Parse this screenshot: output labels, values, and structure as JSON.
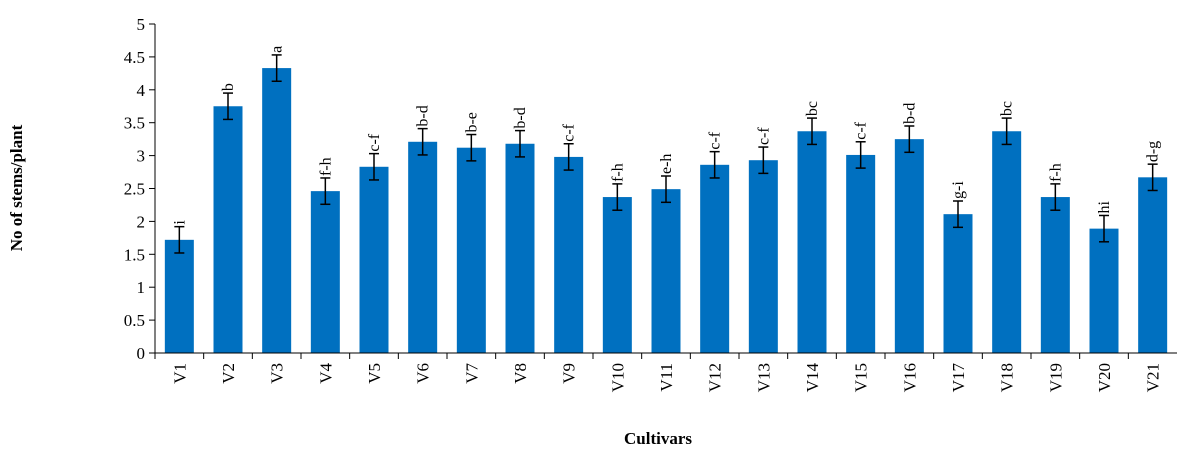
{
  "chart_data": {
    "type": "bar",
    "xlabel": "Cultivars",
    "ylabel": "No of stems/plant",
    "ylim": [
      0,
      5
    ],
    "yticks": [
      "0",
      "0.5",
      "1",
      "1.5",
      "2",
      "2.5",
      "3",
      "3.5",
      "4",
      "4.5",
      "5"
    ],
    "grid": false,
    "bar_color": "#0070c0",
    "categories": [
      "V1",
      "V2",
      "V3",
      "V4",
      "V5",
      "V6",
      "V7",
      "V8",
      "V9",
      "V10",
      "V11",
      "V12",
      "V13",
      "V14",
      "V15",
      "V16",
      "V17",
      "V18",
      "V19",
      "V20",
      "V21"
    ],
    "values": [
      1.72,
      3.75,
      4.33,
      2.46,
      2.83,
      3.21,
      3.12,
      3.18,
      2.98,
      2.37,
      2.49,
      2.86,
      2.93,
      3.37,
      3.01,
      3.25,
      2.11,
      3.37,
      2.37,
      1.89,
      2.67
    ],
    "errors": [
      0.2,
      0.2,
      0.2,
      0.2,
      0.2,
      0.2,
      0.2,
      0.2,
      0.2,
      0.2,
      0.2,
      0.2,
      0.2,
      0.2,
      0.2,
      0.2,
      0.2,
      0.2,
      0.2,
      0.2,
      0.2
    ],
    "annotations": [
      "i",
      "b",
      "a",
      "f-h",
      "c-f",
      "b-d",
      "b-e",
      "b-d",
      "c-f",
      "f-h",
      "e-h",
      "c-f",
      "c-f",
      "bc",
      "c-f",
      "b-d",
      "g-i",
      "bc",
      "f-h",
      "hi",
      "d-g"
    ]
  }
}
